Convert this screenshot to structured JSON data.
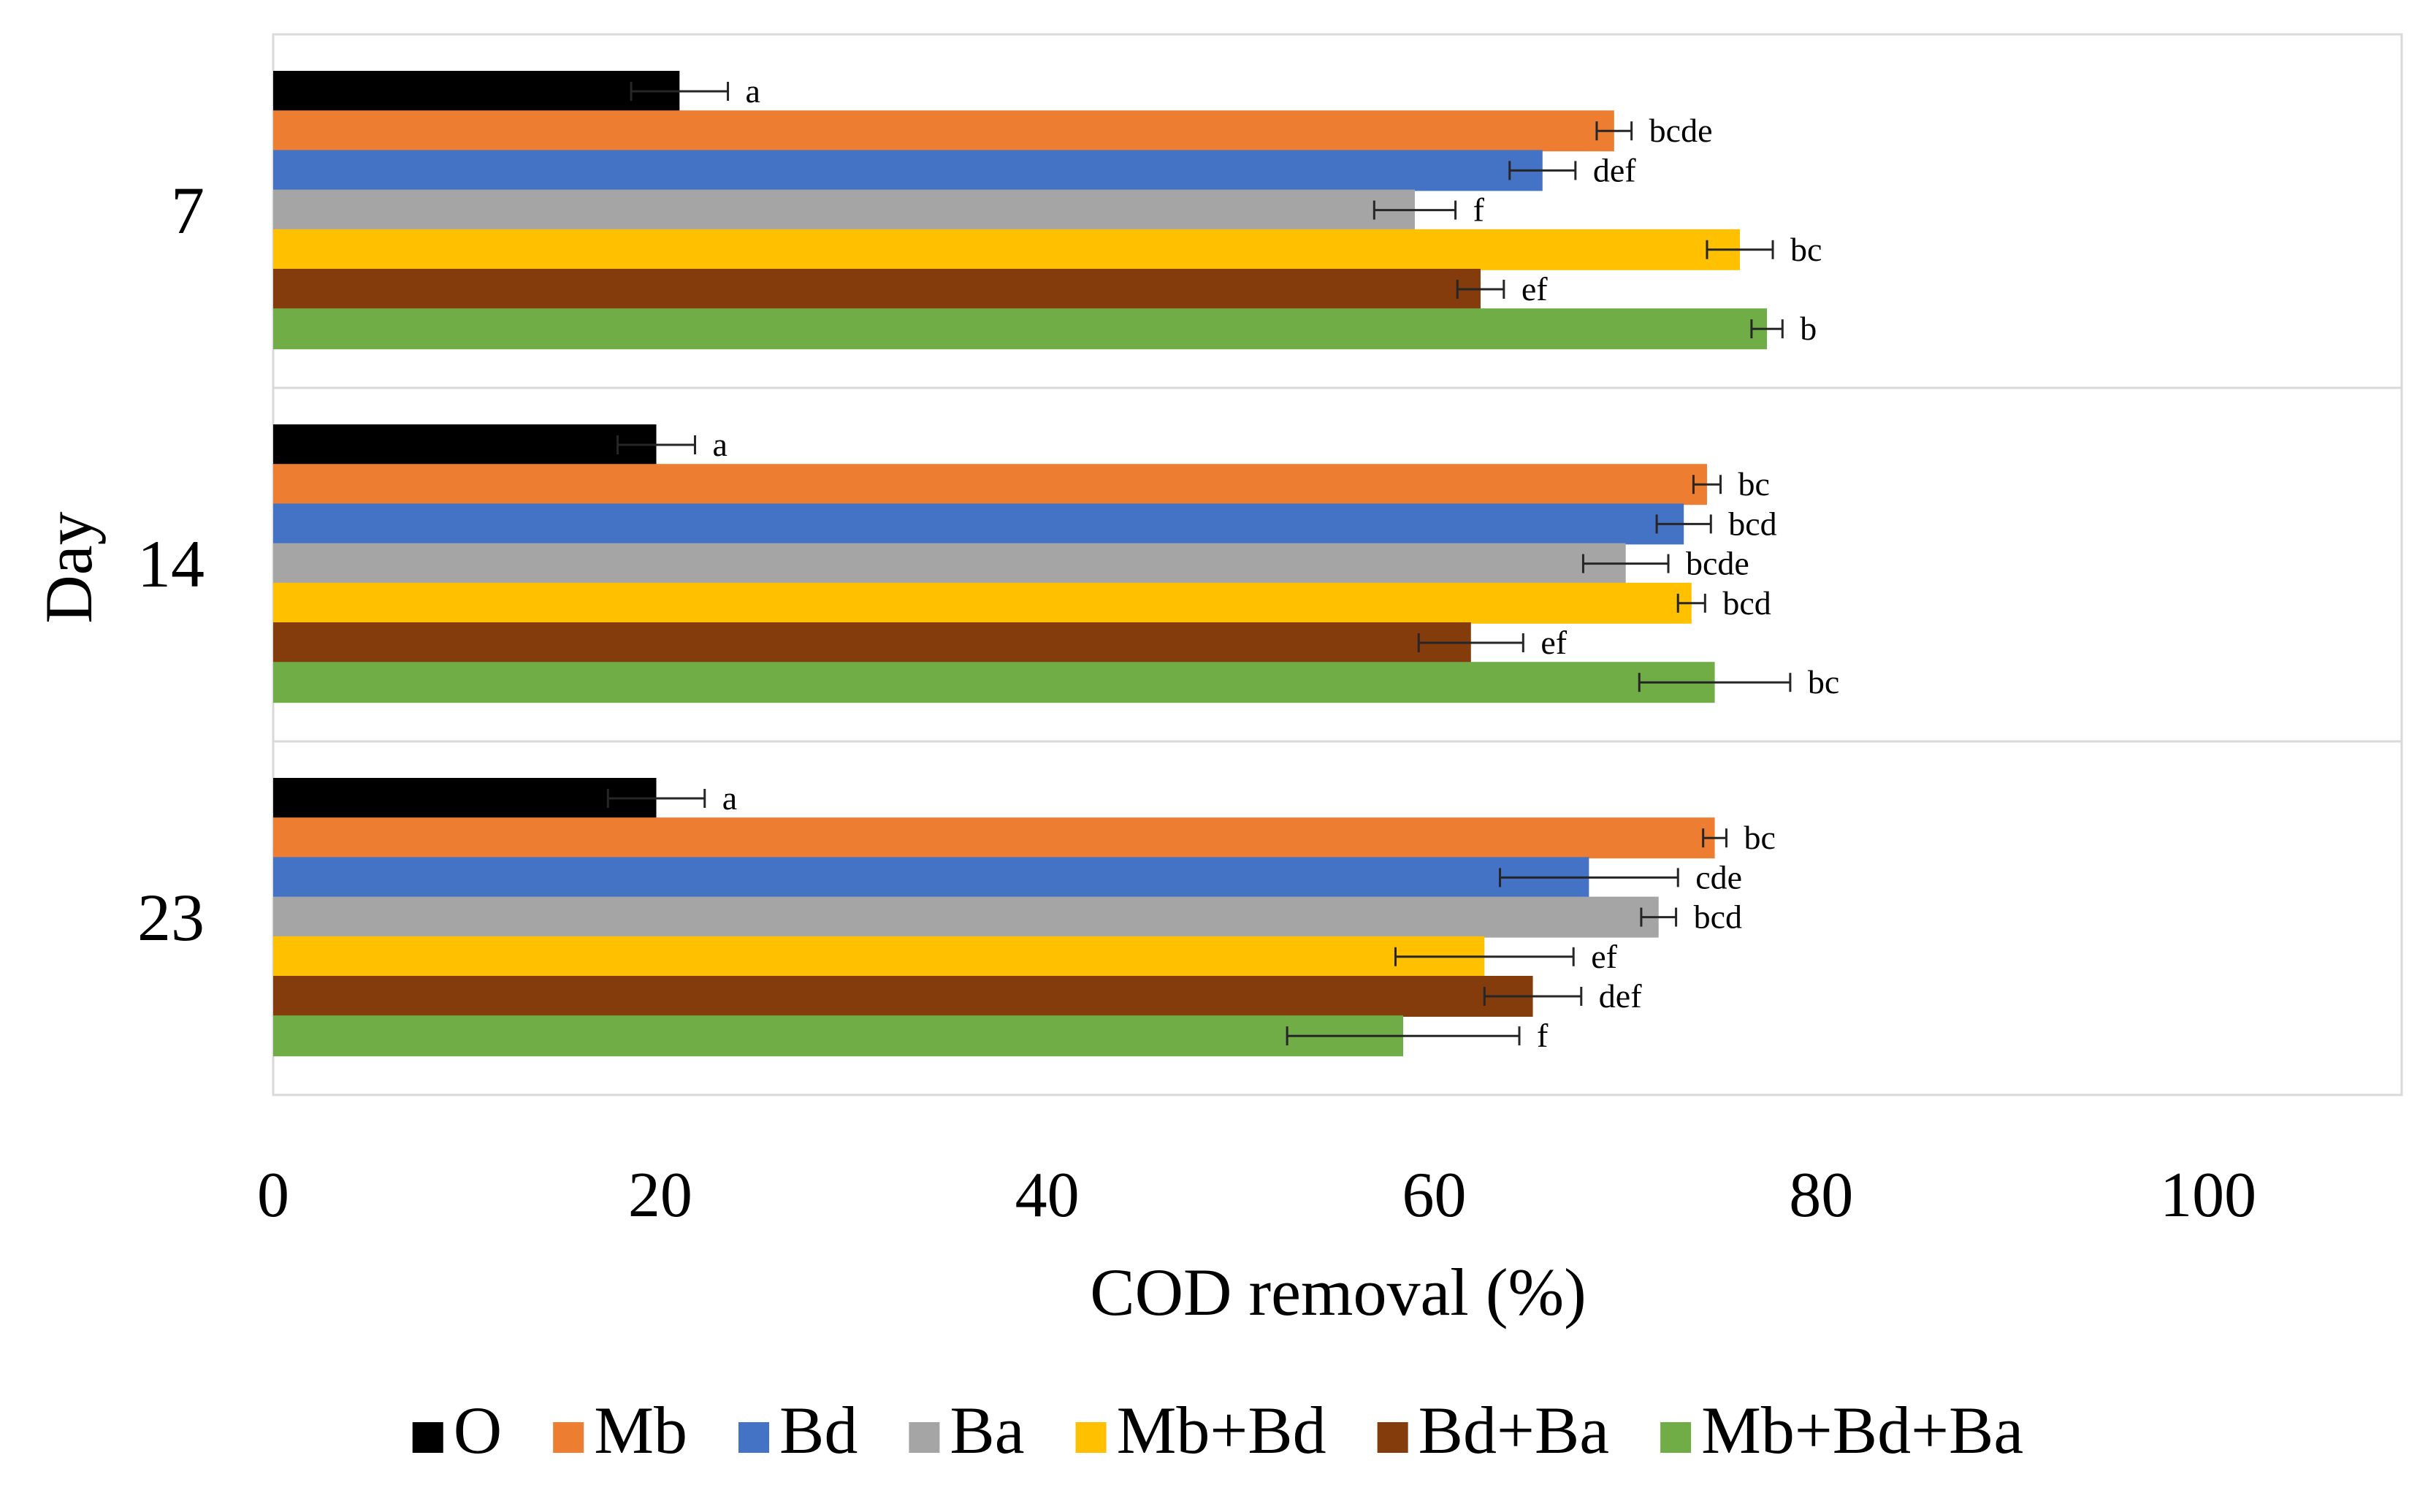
{
  "chart_data": {
    "type": "bar",
    "orientation": "horizontal",
    "title": "",
    "xlabel": "COD removal (%)",
    "ylabel": "Day",
    "xlim": [
      0,
      110
    ],
    "xticks": [
      0,
      20,
      40,
      60,
      80,
      100
    ],
    "grid": "horizontal separators between day groups",
    "legend_position": "bottom",
    "categories": [
      "7",
      "14",
      "23"
    ],
    "series": [
      {
        "name": "O",
        "color": "#000000",
        "values": [
          21.0,
          19.8,
          19.8
        ],
        "errors": [
          2.5,
          2.0,
          2.5
        ],
        "labels": [
          "a",
          "a",
          "a"
        ]
      },
      {
        "name": "Mb",
        "color": "#ED7D31",
        "values": [
          69.3,
          74.1,
          74.5
        ],
        "errors": [
          0.9,
          0.7,
          0.6
        ],
        "labels": [
          "bcde",
          "bc",
          "bc"
        ]
      },
      {
        "name": "Bd",
        "color": "#4472C4",
        "values": [
          65.6,
          72.9,
          68.0
        ],
        "errors": [
          1.7,
          1.4,
          4.6
        ],
        "labels": [
          "def",
          "bcd",
          "cde"
        ]
      },
      {
        "name": "Ba",
        "color": "#A5A5A5",
        "values": [
          59.0,
          69.9,
          71.6
        ],
        "errors": [
          2.1,
          2.2,
          0.9
        ],
        "labels": [
          "f",
          "bcde",
          "bcd"
        ]
      },
      {
        "name": "Mb+Bd",
        "color": "#FFC000",
        "values": [
          75.8,
          73.3,
          62.6
        ],
        "errors": [
          1.7,
          0.7,
          4.6
        ],
        "labels": [
          "bc",
          "bcd",
          "ef"
        ]
      },
      {
        "name": "Bd+Ba",
        "color": "#843C0C",
        "values": [
          62.4,
          61.9,
          65.1
        ],
        "errors": [
          1.2,
          2.7,
          2.5
        ],
        "labels": [
          "ef",
          "ef",
          "def"
        ]
      },
      {
        "name": "Mb+Bd+Ba",
        "color": "#70AD47",
        "values": [
          77.2,
          74.5,
          58.4
        ],
        "errors": [
          0.8,
          3.9,
          6.0
        ],
        "labels": [
          "b",
          "bc",
          "f"
        ]
      }
    ]
  }
}
